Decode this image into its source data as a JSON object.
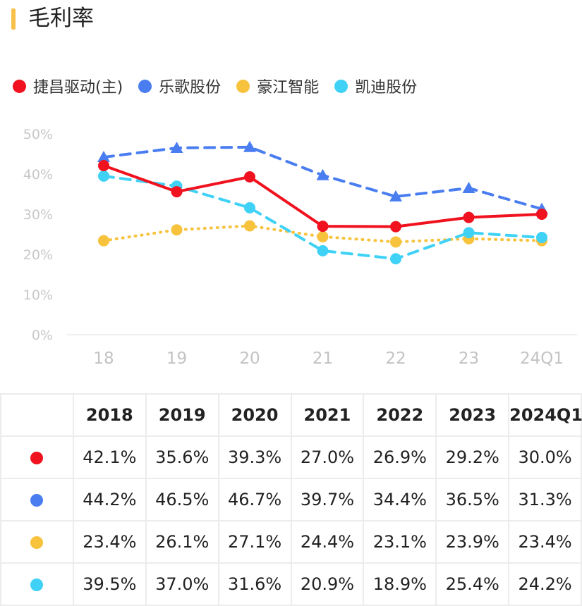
{
  "header": {
    "title": "毛利率",
    "accent_color": "#f7c04a"
  },
  "chart_data": {
    "type": "line",
    "categories": [
      "18",
      "19",
      "20",
      "21",
      "22",
      "23",
      "24Q1"
    ],
    "ylim": [
      0,
      50
    ],
    "yticks": [
      "0%",
      "10%",
      "20%",
      "30%",
      "40%",
      "50%"
    ],
    "grid": false,
    "legend_position": "top",
    "series": [
      {
        "name": "捷昌驱动(主)",
        "color": "#f0121e",
        "line": "solid",
        "marker": "circle",
        "values": [
          42.1,
          35.6,
          39.3,
          27.0,
          26.9,
          29.2,
          30.0
        ]
      },
      {
        "name": "乐歌股份",
        "color": "#4a7ef0",
        "line": "dashed",
        "marker": "triangle",
        "values": [
          44.2,
          46.5,
          46.7,
          39.7,
          34.4,
          36.5,
          31.3
        ]
      },
      {
        "name": "豪江智能",
        "color": "#f7c23c",
        "line": "dotted",
        "marker": "circle",
        "values": [
          23.4,
          26.1,
          27.1,
          24.4,
          23.1,
          23.9,
          23.4
        ]
      },
      {
        "name": "凯迪股份",
        "color": "#3fd2f6",
        "line": "dashed",
        "marker": "circle",
        "values": [
          39.5,
          37.0,
          31.6,
          20.9,
          18.9,
          25.4,
          24.2
        ]
      }
    ]
  },
  "table": {
    "headers": [
      "2018",
      "2019",
      "2020",
      "2021",
      "2022",
      "2023",
      "2024Q1"
    ],
    "rows": [
      {
        "color": "#f0121e",
        "cells": [
          "42.1%",
          "35.6%",
          "39.3%",
          "27.0%",
          "26.9%",
          "29.2%",
          "30.0%"
        ]
      },
      {
        "color": "#4a7ef0",
        "cells": [
          "44.2%",
          "46.5%",
          "46.7%",
          "39.7%",
          "34.4%",
          "36.5%",
          "31.3%"
        ]
      },
      {
        "color": "#f7c23c",
        "cells": [
          "23.4%",
          "26.1%",
          "27.1%",
          "24.4%",
          "23.1%",
          "23.9%",
          "23.4%"
        ]
      },
      {
        "color": "#3fd2f6",
        "cells": [
          "39.5%",
          "37.0%",
          "31.6%",
          "20.9%",
          "18.9%",
          "25.4%",
          "24.2%"
        ]
      }
    ]
  }
}
